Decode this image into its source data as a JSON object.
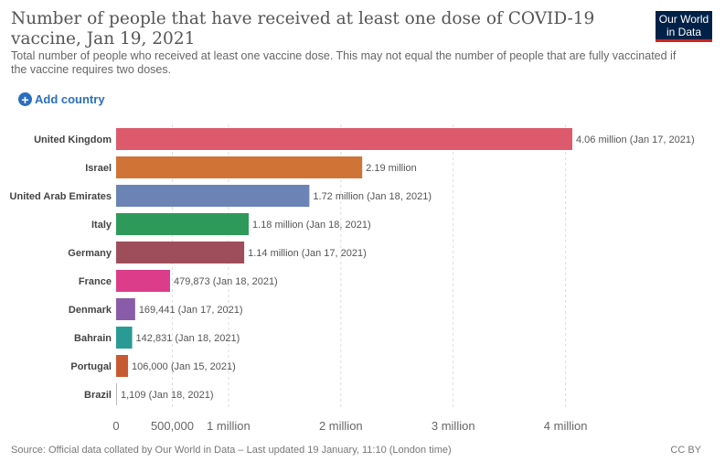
{
  "header": {
    "title": "Number of people that have received at least one dose of COVID-19 vaccine, Jan 19, 2021",
    "subtitle": "Total number of people who received at least one vaccine dose. This may not equal the number of people that are fully vaccinated if the vaccine requires two doses.",
    "logo_line1": "Our World",
    "logo_line2": "in Data",
    "logo_color": "#002147",
    "logo_accent": "#ce261e"
  },
  "controls": {
    "add_country_label": "Add country",
    "add_country_icon": "plus-circle-icon",
    "accent_color": "#2a6ebd"
  },
  "footer": {
    "source": "Source: Official data collated by Our World in Data – Last updated 19 January, 11:10 (London time)",
    "license": "CC BY"
  },
  "chart_data": {
    "type": "bar",
    "orientation": "horizontal",
    "title": "Number of people that have received at least one dose of COVID-19 vaccine, Jan 19, 2021",
    "categories": [
      "United Kingdom",
      "Israel",
      "United Arab Emirates",
      "Italy",
      "Germany",
      "France",
      "Denmark",
      "Bahrain",
      "Portugal",
      "Brazil"
    ],
    "values": [
      4060000,
      2190000,
      1720000,
      1180000,
      1140000,
      479873,
      169441,
      142831,
      106000,
      1109
    ],
    "labels": [
      "4.06 million (Jan 17, 2021)",
      "2.19 million",
      "1.72 million (Jan 18, 2021)",
      "1.18 million (Jan 18, 2021)",
      "1.14 million (Jan 17, 2021)",
      "479,873 (Jan 18, 2021)",
      "169,441 (Jan 17, 2021)",
      "142,831 (Jan 18, 2021)",
      "106,000 (Jan 15, 2021)",
      "1,109 (Jan 18, 2021)"
    ],
    "colors": [
      "#dc5a6c",
      "#cf7336",
      "#6b84b5",
      "#2e9a5a",
      "#9e4e5a",
      "#dc3d8a",
      "#8a5ba8",
      "#2a9a95",
      "#c85a32",
      "#bbbbbb"
    ],
    "xticks": [
      0,
      500000,
      1000000,
      2000000,
      3000000,
      4000000
    ],
    "xtick_labels": [
      "0",
      "500,000",
      "1 million",
      "2 million",
      "3 million",
      "4 million"
    ],
    "xlim": [
      0,
      4060000
    ],
    "grid": "vertical-dashed"
  }
}
